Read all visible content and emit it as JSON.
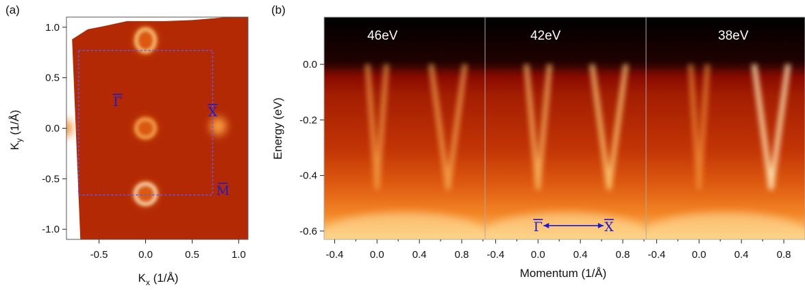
{
  "chart_data": [
    {
      "type": "heatmap",
      "panel_label": "(a)",
      "xlabel": "K",
      "xlabel_sub": "x",
      "xlabel_unit": " (1/Å)",
      "ylabel": "K",
      "ylabel_sub": "y",
      "ylabel_unit": " (1/Å)",
      "xlim": [
        -0.85,
        1.1
      ],
      "ylim": [
        -1.1,
        1.1
      ],
      "x_ticks": [
        {
          "v": -0.5,
          "label": "-0.5"
        },
        {
          "v": 0.0,
          "label": "0.0"
        },
        {
          "v": 0.5,
          "label": "0.5"
        },
        {
          "v": 1.0,
          "label": "1.0"
        }
      ],
      "y_ticks": [
        {
          "v": 1.0,
          "label": "1.0"
        },
        {
          "v": 0.5,
          "label": "0.5"
        },
        {
          "v": 0.0,
          "label": "0.0"
        },
        {
          "v": -0.5,
          "label": "-0.5"
        },
        {
          "v": -1.0,
          "label": "-1.0"
        }
      ],
      "colormap": [
        "#000000",
        "#8a0a00",
        "#c93a06",
        "#f07a1a",
        "#ffd27a",
        "#ffffff"
      ],
      "brillouin_zone": {
        "x": [
          -0.72,
          0.72
        ],
        "y": [
          -0.66,
          0.77
        ],
        "color": "#5a5aff",
        "style": "dashed"
      },
      "symmetry_points": [
        {
          "label": "Γ",
          "x": -0.3,
          "y": 0.22
        },
        {
          "label": "X",
          "x": 0.72,
          "y": 0.12
        },
        {
          "label": "M",
          "x": 0.83,
          "y": -0.66
        }
      ],
      "features": [
        {
          "kind": "ring",
          "x": 0.0,
          "y": 0.87,
          "rx": 0.1,
          "ry": 0.11,
          "intensity": 0.75
        },
        {
          "kind": "ring",
          "x": 0.0,
          "y": 0.0,
          "rx": 0.1,
          "ry": 0.09,
          "intensity": 0.55
        },
        {
          "kind": "ring",
          "x": 0.0,
          "y": -0.65,
          "rx": 0.11,
          "ry": 0.1,
          "intensity": 0.95
        },
        {
          "kind": "spot",
          "x": 0.78,
          "y": 0.02,
          "rx": 0.09,
          "ry": 0.09,
          "intensity": 0.45
        },
        {
          "kind": "spot",
          "x": -0.85,
          "y": 0.0,
          "rx": 0.06,
          "ry": 0.09,
          "intensity": 0.4
        }
      ]
    },
    {
      "type": "heatmap",
      "panel_label": "(b)",
      "xlabel": "Momentum (1/Å)",
      "ylabel": "Energy (eV)",
      "ylim": [
        -0.63,
        0.17
      ],
      "y_ticks": [
        {
          "v": 0.0,
          "label": "0.0"
        },
        {
          "v": -0.2,
          "label": "-0.2"
        },
        {
          "v": -0.4,
          "label": "-0.4"
        },
        {
          "v": -0.6,
          "label": "-0.6"
        }
      ],
      "colormap": [
        "#000000",
        "#8a0a00",
        "#c93a06",
        "#f07a1a",
        "#ffd27a",
        "#ffffff"
      ],
      "subpanels": [
        {
          "label": "46eV",
          "xlim": [
            -0.5,
            1.02
          ],
          "x_ticks": [
            {
              "v": -0.4,
              "label": "-0.4"
            },
            {
              "v": 0.0,
              "label": "0.0"
            },
            {
              "v": 0.4,
              "label": "0.4"
            },
            {
              "v": 0.8,
              "label": "0.8"
            }
          ],
          "bands": [
            {
              "center": 0.0,
              "k_at_fermi": 0.09,
              "intensity": 0.45
            },
            {
              "center": 0.67,
              "k_at_fermi": 0.16,
              "intensity": 0.5
            }
          ]
        },
        {
          "label": "42eV",
          "xlim": [
            -0.5,
            1.02
          ],
          "x_ticks": [
            {
              "v": -0.4,
              "label": "-0.4"
            },
            {
              "v": 0.0,
              "label": "0.0"
            },
            {
              "v": 0.4,
              "label": "0.4"
            },
            {
              "v": 0.8,
              "label": "0.8"
            }
          ],
          "bands": [
            {
              "center": 0.0,
              "k_at_fermi": 0.11,
              "intensity": 0.6
            },
            {
              "center": 0.67,
              "k_at_fermi": 0.16,
              "intensity": 0.7
            }
          ]
        },
        {
          "label": "38eV",
          "xlim": [
            -0.5,
            1.0
          ],
          "x_ticks": [
            {
              "v": -0.4,
              "label": "-0.4"
            },
            {
              "v": 0.0,
              "label": "0.0"
            },
            {
              "v": 0.4,
              "label": "0.4"
            },
            {
              "v": 0.8,
              "label": "0.8"
            }
          ],
          "bands": [
            {
              "center": 0.0,
              "k_at_fermi": 0.08,
              "intensity": 0.35
            },
            {
              "center": 0.68,
              "k_at_fermi": 0.16,
              "intensity": 0.95
            }
          ]
        }
      ],
      "path_annotation": {
        "from": "Γ",
        "to": "X",
        "from_k": 0.0,
        "to_k": 0.67,
        "energy": -0.6,
        "color": "#1a1ad6"
      }
    }
  ]
}
